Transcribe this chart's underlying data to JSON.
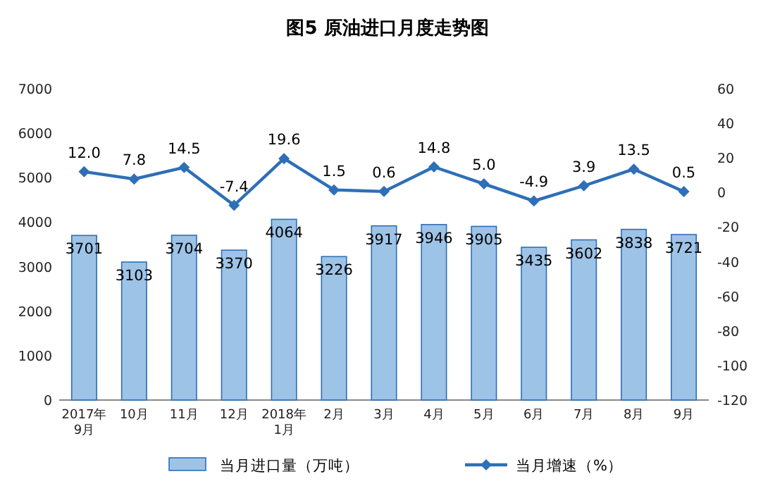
{
  "chart_data": {
    "type": "bar",
    "title": "图5  原油进口月度走势图",
    "categories": [
      "2017年\n9月",
      "10月",
      "11月",
      "12月",
      "2018年\n1月",
      "2月",
      "3月",
      "4月",
      "5月",
      "6月",
      "7月",
      "8月",
      "9月"
    ],
    "series": [
      {
        "name": "当月进口量（万吨）",
        "color": "#9dc3e6",
        "values": [
          3701,
          3103,
          3704,
          3370,
          4064,
          3226,
          3917,
          3946,
          3905,
          3435,
          3602,
          3838,
          3721
        ],
        "value_labels": [
          "3701",
          "3103",
          "3704",
          "3370",
          "4064",
          "3226",
          "3917",
          "3946",
          "3905",
          "3435",
          "3602",
          "3838",
          "3721"
        ]
      },
      {
        "name": "当月增速（%）",
        "type": "line",
        "axis": "y2",
        "color": "#2e6fb7",
        "marker": "diamond",
        "values": [
          12.0,
          7.8,
          14.5,
          -7.4,
          19.6,
          1.5,
          0.6,
          14.8,
          5.0,
          -4.9,
          3.9,
          13.5,
          0.5
        ],
        "value_labels": [
          "12.0",
          "7.8",
          "14.5",
          "-7.4",
          "19.6",
          "1.5",
          "0.6",
          "14.8",
          "5.0",
          "-4.9",
          "3.9",
          "13.5",
          "0.5"
        ]
      }
    ],
    "ylim": [
      0,
      7000
    ],
    "yticks": [
      0,
      1000,
      2000,
      3000,
      4000,
      5000,
      6000,
      7000
    ],
    "y2lim": [
      -120,
      60
    ],
    "y2ticks": [
      -120,
      -100,
      -80,
      -60,
      -40,
      -20,
      0,
      20,
      40,
      60
    ],
    "grid": false,
    "legend": "bottom"
  }
}
